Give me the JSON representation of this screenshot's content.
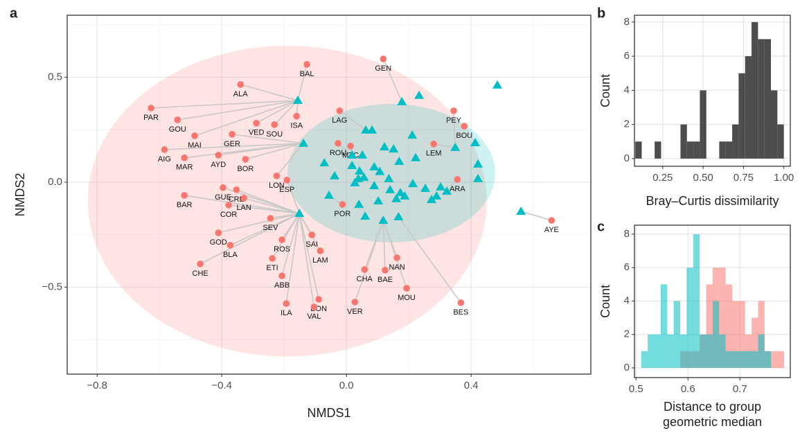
{
  "chart_data": [
    {
      "type": "scatter",
      "panel": "a",
      "xlabel": "NMDS1",
      "ylabel": "NMDS2",
      "xlim": [
        -0.896,
        0.784
      ],
      "ylim": [
        -0.914,
        0.795
      ],
      "xticks": [
        {
          "value": -0.8,
          "label": "−0.8"
        },
        {
          "value": -0.4,
          "label": "−0.4"
        },
        {
          "value": 0,
          "label": "0.0"
        },
        {
          "value": 0.4,
          "label": "0.4"
        }
      ],
      "yticks": [
        {
          "value": -0.5,
          "label": "−0.5"
        },
        {
          "value": 0,
          "label": "0.0"
        },
        {
          "value": 0.5,
          "label": "0.5"
        }
      ],
      "x_minor_ticks": [
        -0.6,
        -0.2,
        0.2,
        0.6
      ],
      "y_minor_ticks": [
        -0.75,
        -0.25,
        0.25,
        0.75
      ],
      "grid": true,
      "link_color": "#c8c8c8",
      "ellipses": [
        {
          "color": "#f8766d",
          "cx": -0.19,
          "cy": -0.09,
          "rx": 0.64,
          "ry": 0.74
        },
        {
          "color": "#00bfc4",
          "cx": 0.144,
          "cy": 0.043,
          "rx": 0.333,
          "ry": 0.33
        }
      ],
      "series": [
        {
          "color": "#f8766d",
          "marker": "circle",
          "labels": [
            "BAL",
            "GEN",
            "ALA",
            "PAR",
            "PEY",
            "GOU",
            "LAG",
            "ISA",
            "VED",
            "SOU",
            "BOU",
            "MAI",
            "GER",
            "AIG",
            "AYD",
            "LEM",
            "ROU",
            "MTC",
            "MAR",
            "BOR",
            "LON",
            "ESP",
            "ARA",
            "GUE",
            "CRE",
            "BAR",
            "LAN",
            "COR",
            "POR",
            "SEV",
            "GOD",
            "SAI",
            "BLA",
            "ROS",
            "NAN",
            "LAM",
            "ETI",
            "CHE",
            "CHA",
            "BAE",
            "ABB",
            "MOU",
            "BON",
            "VER",
            "ILA",
            "BES",
            "VAL",
            "AYE"
          ],
          "x": [
            -0.127,
            0.118,
            -0.34,
            -0.627,
            0.344,
            -0.542,
            -0.022,
            -0.16,
            -0.289,
            -0.231,
            0.378,
            -0.487,
            -0.367,
            -0.584,
            -0.411,
            0.28,
            -0.027,
            0.013,
            -0.52,
            -0.324,
            -0.224,
            -0.191,
            0.356,
            -0.396,
            -0.353,
            -0.52,
            -0.329,
            -0.378,
            -0.013,
            -0.244,
            -0.411,
            -0.111,
            -0.373,
            -0.207,
            0.162,
            -0.084,
            -0.238,
            -0.469,
            0.058,
            0.124,
            -0.207,
            0.193,
            -0.089,
            0.027,
            -0.193,
            0.367,
            -0.104,
            0.658
          ],
          "y": [
            0.561,
            0.587,
            0.465,
            0.353,
            0.34,
            0.297,
            0.34,
            0.314,
            0.281,
            0.274,
            0.267,
            0.221,
            0.228,
            0.155,
            0.129,
            0.182,
            0.185,
            0.172,
            0.116,
            0.109,
            0.03,
            0.01,
            0.013,
            -0.026,
            -0.036,
            -0.063,
            -0.076,
            -0.109,
            -0.106,
            -0.172,
            -0.241,
            -0.251,
            -0.3,
            -0.274,
            -0.36,
            -0.327,
            -0.363,
            -0.389,
            -0.416,
            -0.419,
            -0.446,
            -0.505,
            -0.558,
            -0.571,
            -0.578,
            -0.574,
            -0.594,
            -0.182
          ]
        },
        {
          "color": "#00bfc4",
          "marker": "triangle",
          "x": [
            -0.156,
            0.178,
            0.233,
            0.484,
            0.062,
            0.082,
            0.211,
            -0.138,
            -0.071,
            0.122,
            0.151,
            0.349,
            0.413,
            0.018,
            0.051,
            0.089,
            0.018,
            0.042,
            0.107,
            0.169,
            0.222,
            0.422,
            -0.038,
            0.027,
            0.056,
            0.089,
            0.14,
            0.173,
            0.213,
            0.253,
            0.302,
            0.422,
            -0.056,
            0.16,
            0.187,
            0.102,
            0.273,
            0.289,
            0.322,
            0.04,
            0.06,
            0.118,
            0.167,
            -0.151,
            0.56,
            0.136,
            0.038
          ],
          "y": [
            0.389,
            0.383,
            0.413,
            0.462,
            0.248,
            0.248,
            0.224,
            0.185,
            0.092,
            0.168,
            0.158,
            0.165,
            0.188,
            0.129,
            0.129,
            0.073,
            0.079,
            0.053,
            0.05,
            0.099,
            0.116,
            0.086,
            0.03,
            -0.003,
            0.023,
            -0.017,
            -0.036,
            -0.05,
            -0.007,
            -0.03,
            -0.023,
            0.017,
            -0.063,
            -0.079,
            -0.066,
            -0.089,
            -0.083,
            -0.066,
            -0.043,
            -0.106,
            -0.162,
            -0.182,
            -0.165,
            -0.149,
            -0.139,
            0.017,
            0.017
          ]
        }
      ]
    },
    {
      "type": "histogram",
      "panel": "b",
      "xlabel": "Bray–Curtis dissimilarity",
      "ylabel": "Count",
      "xlim": [
        0.075,
        1.04
      ],
      "ylim": [
        -0.45,
        8.4
      ],
      "xticks": [
        {
          "value": 0.25,
          "label": "0.25"
        },
        {
          "value": 0.5,
          "label": "0.50"
        },
        {
          "value": 0.75,
          "label": "0.75"
        },
        {
          "value": 1,
          "label": "1.00"
        }
      ],
      "yticks": [
        0,
        2,
        4,
        6,
        8
      ],
      "grid": true,
      "color": "#4d4d4d",
      "alpha": 1,
      "bins": [
        0.08,
        0.12,
        0.16,
        0.2,
        0.24,
        0.28,
        0.32,
        0.36,
        0.4,
        0.44,
        0.48,
        0.52,
        0.56,
        0.6,
        0.64,
        0.68,
        0.72,
        0.76,
        0.8,
        0.84,
        0.88,
        0.92,
        0.96,
        1.0
      ],
      "values": [
        1,
        0,
        0,
        1,
        0,
        0,
        0,
        2,
        1,
        1,
        4,
        0,
        0,
        1,
        1,
        2,
        5,
        6,
        8,
        7,
        7,
        4,
        2
      ]
    },
    {
      "type": "histogram",
      "panel": "c",
      "xlabel": [
        "Distance to group",
        "geometric median"
      ],
      "ylabel": "Count",
      "xlim": [
        0.497,
        0.797
      ],
      "ylim": [
        -0.58,
        8.54
      ],
      "xticks": [
        0.5,
        0.6,
        0.7
      ],
      "yticks": [
        0,
        2,
        4,
        6,
        8
      ],
      "grid": true,
      "alpha": 0.55,
      "bins": [
        0.51,
        0.5225,
        0.535,
        0.5475,
        0.56,
        0.5725,
        0.585,
        0.5975,
        0.61,
        0.6225,
        0.635,
        0.6475,
        0.66,
        0.6725,
        0.685,
        0.6975,
        0.71,
        0.7225,
        0.735,
        0.7475,
        0.76,
        0.7725,
        0.785
      ],
      "series": [
        {
          "color": "#f8766d",
          "values": [
            0,
            0,
            0,
            0,
            0,
            0,
            1,
            1,
            1,
            2,
            5,
            6,
            6,
            5,
            4,
            4,
            2,
            3,
            4,
            1,
            1,
            1
          ]
        },
        {
          "color": "#00bfc4",
          "values": [
            1,
            2,
            2,
            5,
            2,
            4,
            2,
            6,
            8,
            2,
            2,
            4,
            2,
            1,
            1,
            1,
            1,
            1,
            2,
            1,
            0,
            0
          ]
        }
      ]
    }
  ]
}
